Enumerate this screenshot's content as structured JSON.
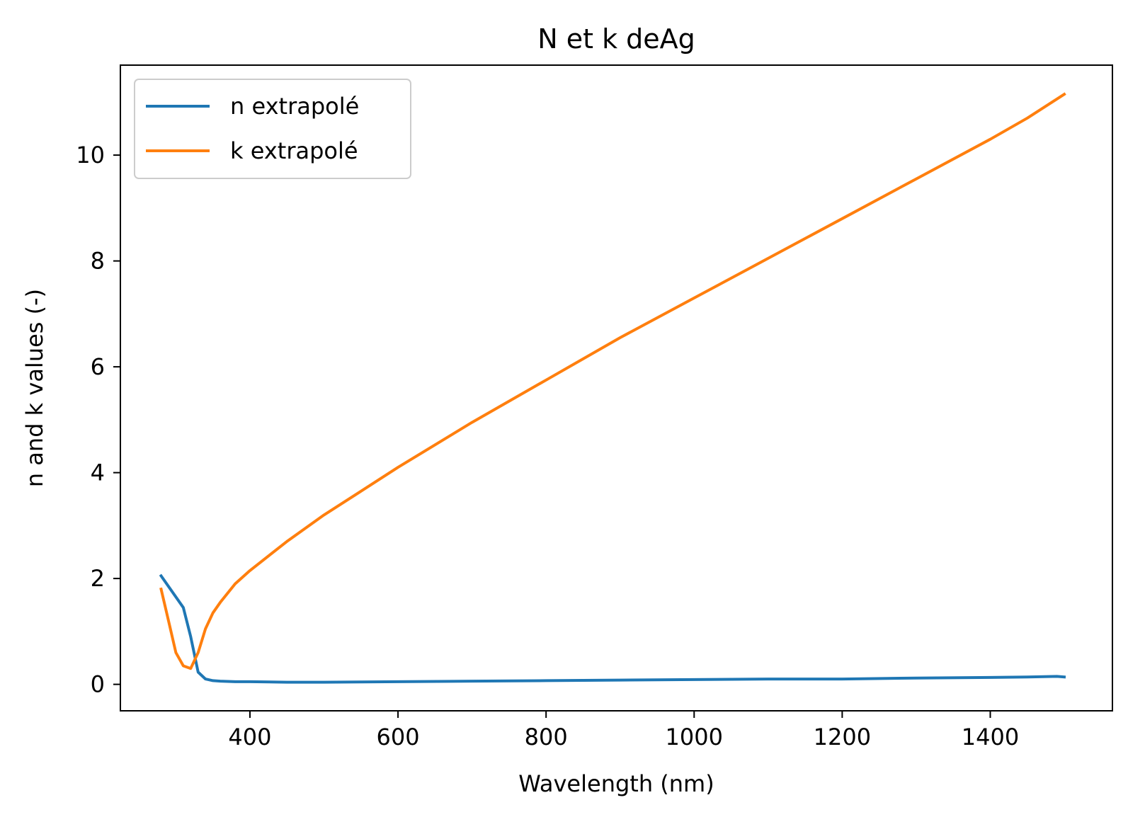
{
  "chart_data": {
    "type": "line",
    "title": "N et k deAg",
    "xlabel": "Wavelength (nm)",
    "ylabel": "n and k values (-)",
    "xlim": [
      225,
      1565
    ],
    "ylim": [
      -0.5,
      11.7
    ],
    "xticks": [
      400,
      600,
      800,
      1000,
      1200,
      1400
    ],
    "yticks": [
      0,
      2,
      4,
      6,
      8,
      10
    ],
    "xtick_labels": [
      "400",
      "600",
      "800",
      "1000",
      "1200",
      "1400"
    ],
    "ytick_labels": [
      "0",
      "2",
      "4",
      "6",
      "8",
      "10"
    ],
    "grid": false,
    "legend_position": "top-left",
    "series": [
      {
        "name": "n extrapolé",
        "color": "#1f77b4",
        "x": [
          280,
          310,
          320,
          330,
          340,
          350,
          360,
          380,
          400,
          450,
          500,
          550,
          600,
          700,
          800,
          900,
          1000,
          1100,
          1150,
          1200,
          1300,
          1400,
          1450,
          1490,
          1500
        ],
        "y": [
          2.05,
          1.45,
          0.9,
          0.23,
          0.1,
          0.07,
          0.06,
          0.05,
          0.05,
          0.04,
          0.04,
          0.045,
          0.05,
          0.06,
          0.07,
          0.08,
          0.09,
          0.1,
          0.1,
          0.1,
          0.12,
          0.13,
          0.14,
          0.15,
          0.14
        ]
      },
      {
        "name": "k extrapolé",
        "color": "#ff7f0e",
        "x": [
          280,
          290,
          300,
          310,
          320,
          330,
          340,
          350,
          360,
          380,
          400,
          450,
          500,
          550,
          600,
          700,
          800,
          900,
          1000,
          1100,
          1200,
          1300,
          1400,
          1450,
          1500
        ],
        "y": [
          1.8,
          1.2,
          0.6,
          0.35,
          0.3,
          0.6,
          1.05,
          1.35,
          1.55,
          1.9,
          2.15,
          2.7,
          3.2,
          3.65,
          4.1,
          4.95,
          5.75,
          6.55,
          7.3,
          8.05,
          8.8,
          9.55,
          10.3,
          10.7,
          11.15
        ]
      }
    ]
  }
}
